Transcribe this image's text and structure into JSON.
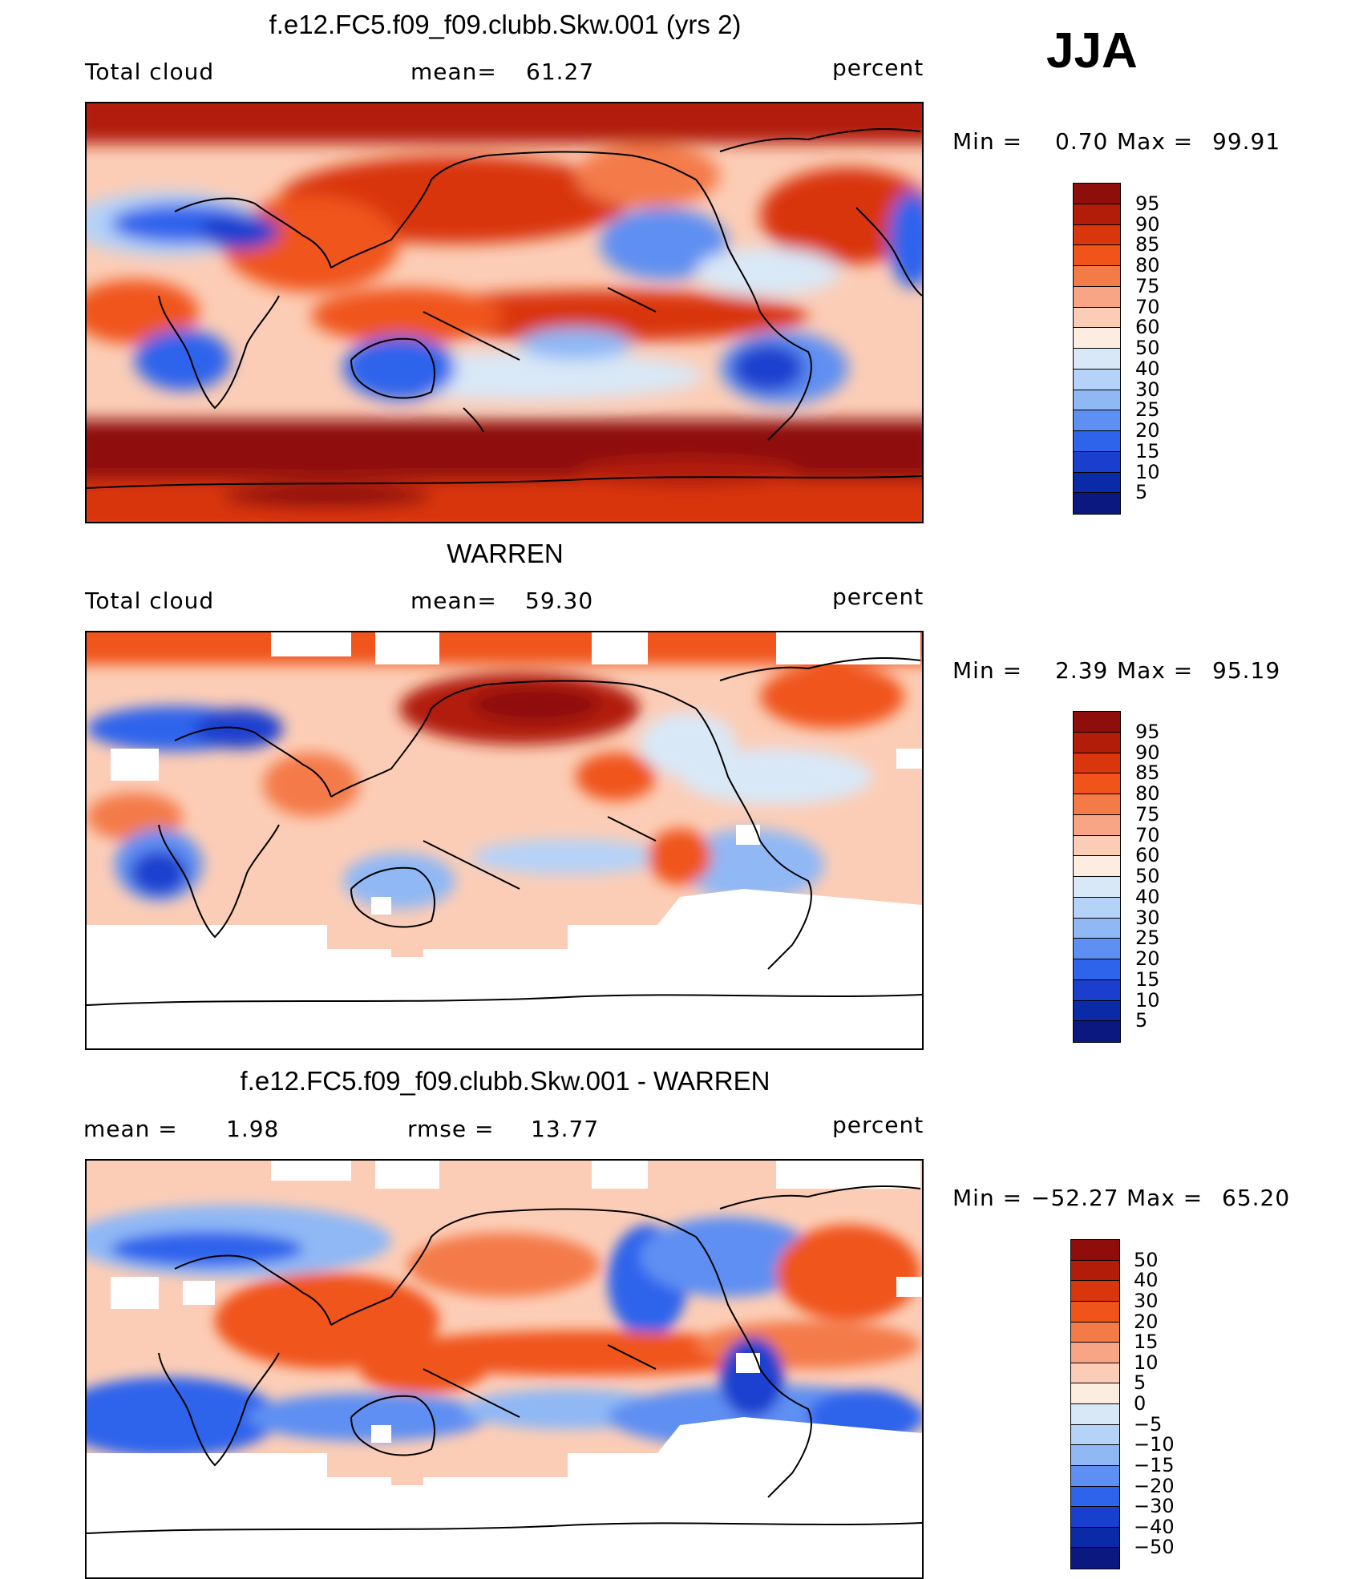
{
  "season": "JJA",
  "panels": [
    {
      "id": "model",
      "title": "f.e12.FC5.f09_f09.clubb.Skw.001 (yrs 2)",
      "left_label": "Total cloud",
      "stat1_label": "mean=",
      "stat1_value": "61.27",
      "stat2_label": "",
      "stat2_value": "",
      "units": "percent",
      "min_label": "Min =",
      "min_value": "0.70",
      "max_label": "Max =",
      "max_value": "99.91",
      "legend_labels": [
        "95",
        "90",
        "85",
        "80",
        "75",
        "70",
        "60",
        "50",
        "40",
        "30",
        "25",
        "20",
        "15",
        "10",
        "5"
      ],
      "legend_colors": [
        "#8f0d0b",
        "#b21d0a",
        "#d9360d",
        "#f0541b",
        "#f47a48",
        "#f8a585",
        "#fccdb6",
        "#fdece0",
        "#d9e8f7",
        "#b5d2f8",
        "#8fb8f5",
        "#5e8ff2",
        "#2e63ec",
        "#1a3fcf",
        "#0b2aa8",
        "#0a1880"
      ]
    },
    {
      "id": "obs",
      "title": "WARREN",
      "left_label": "Total cloud",
      "stat1_label": "mean=",
      "stat1_value": "59.30",
      "stat2_label": "",
      "stat2_value": "",
      "units": "percent",
      "min_label": "Min =",
      "min_value": "2.39",
      "max_label": "Max =",
      "max_value": "95.19",
      "legend_labels": [
        "95",
        "90",
        "85",
        "80",
        "75",
        "70",
        "60",
        "50",
        "40",
        "30",
        "25",
        "20",
        "15",
        "10",
        "5"
      ],
      "legend_colors": [
        "#8f0d0b",
        "#b21d0a",
        "#d9360d",
        "#f0541b",
        "#f47a48",
        "#f8a585",
        "#fccdb6",
        "#fdece0",
        "#d9e8f7",
        "#b5d2f8",
        "#8fb8f5",
        "#5e8ff2",
        "#2e63ec",
        "#1a3fcf",
        "#0b2aa8",
        "#0a1880"
      ]
    },
    {
      "id": "diff",
      "title": "f.e12.FC5.f09_f09.clubb.Skw.001 - WARREN",
      "left_label": "mean =",
      "stat1_label": "",
      "stat1_value": "1.98",
      "stat2_label": "rmse =",
      "stat2_value": "13.77",
      "units": "percent",
      "min_label": "Min =",
      "min_value": "−52.27",
      "max_label": "Max =",
      "max_value": "65.20",
      "legend_labels": [
        "50",
        "40",
        "30",
        "20",
        "15",
        "10",
        "5",
        "0",
        "−5",
        "−10",
        "−15",
        "−20",
        "−30",
        "−40",
        "−50"
      ],
      "legend_colors": [
        "#8f0d0b",
        "#b21d0a",
        "#d9360d",
        "#f0541b",
        "#f47a48",
        "#f8a585",
        "#fccdb6",
        "#fdece0",
        "#d9e8f7",
        "#b5d2f8",
        "#8fb8f5",
        "#5e8ff2",
        "#2e63ec",
        "#1a3fcf",
        "#0b2aa8",
        "#0a1880"
      ]
    }
  ]
}
